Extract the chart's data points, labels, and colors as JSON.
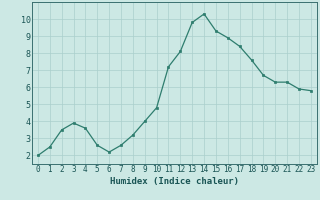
{
  "x": [
    0,
    1,
    2,
    3,
    4,
    5,
    6,
    7,
    8,
    9,
    10,
    11,
    12,
    13,
    14,
    15,
    16,
    17,
    18,
    19,
    20,
    21,
    22,
    23
  ],
  "y": [
    2.0,
    2.5,
    3.5,
    3.9,
    3.6,
    2.6,
    2.2,
    2.6,
    3.2,
    4.0,
    4.8,
    7.2,
    8.1,
    9.8,
    10.3,
    9.3,
    8.9,
    8.4,
    7.6,
    6.7,
    6.3,
    6.3,
    5.9,
    5.8
  ],
  "xlabel": "Humidex (Indice chaleur)",
  "ylim": [
    1.5,
    11.0
  ],
  "xlim": [
    -0.5,
    23.5
  ],
  "yticks": [
    2,
    3,
    4,
    5,
    6,
    7,
    8,
    9,
    10
  ],
  "xticks": [
    0,
    1,
    2,
    3,
    4,
    5,
    6,
    7,
    8,
    9,
    10,
    11,
    12,
    13,
    14,
    15,
    16,
    17,
    18,
    19,
    20,
    21,
    22,
    23
  ],
  "line_color": "#2e7d6e",
  "marker_color": "#2e7d6e",
  "bg_color": "#cce8e4",
  "grid_color": "#aacfcc",
  "axis_color": "#3a7070",
  "label_color": "#1a5555",
  "tick_fontsize": 5.5,
  "xlabel_fontsize": 6.5
}
